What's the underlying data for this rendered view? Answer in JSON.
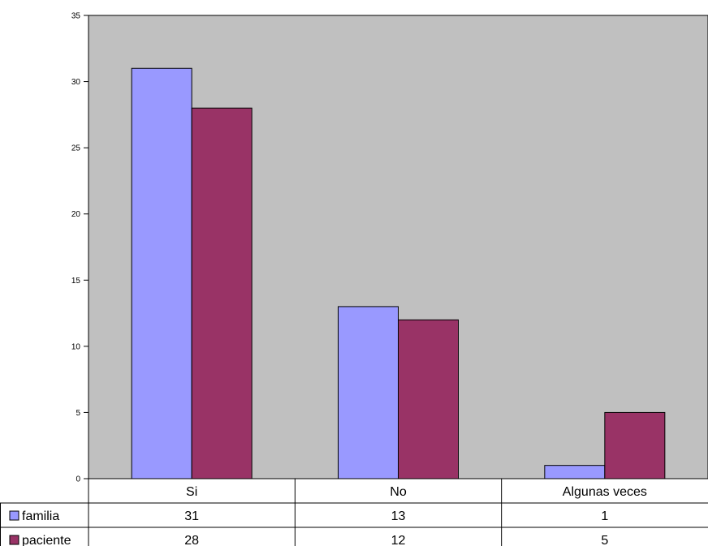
{
  "chart_data": {
    "type": "bar",
    "categories": [
      "Si",
      "No",
      "Algunas veces"
    ],
    "series": [
      {
        "name": "familia",
        "values": [
          31,
          13,
          1
        ],
        "color": "#9999FF"
      },
      {
        "name": "paciente",
        "values": [
          28,
          12,
          5
        ],
        "color": "#993366"
      }
    ],
    "ylim": [
      0,
      35
    ],
    "yticks": [
      0,
      5,
      10,
      15,
      20,
      25,
      30,
      35
    ],
    "plot_background": "#C0C0C0",
    "grid": false,
    "legend": "data-table"
  }
}
